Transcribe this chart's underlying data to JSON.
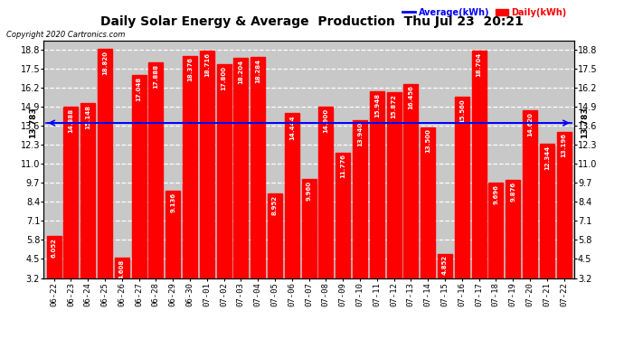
{
  "title": "Daily Solar Energy & Average  Production  Thu Jul 23  20:21",
  "copyright": "Copyright 2020 Cartronics.com",
  "avg_label": "Average(kWh)",
  "daily_label": "Daily(kWh)",
  "avg_value": 13.783,
  "avg_value_label": "13.783",
  "categories": [
    "06-22",
    "06-23",
    "06-24",
    "06-25",
    "06-26",
    "06-27",
    "06-28",
    "06-29",
    "06-30",
    "07-01",
    "07-02",
    "07-03",
    "07-04",
    "07-05",
    "07-06",
    "07-07",
    "07-08",
    "07-09",
    "07-10",
    "07-11",
    "07-12",
    "07-13",
    "07-14",
    "07-15",
    "07-16",
    "07-17",
    "07-18",
    "07-19",
    "07-20",
    "07-21",
    "07-22"
  ],
  "values": [
    6.052,
    14.888,
    15.148,
    18.82,
    4.608,
    17.048,
    17.888,
    9.136,
    18.376,
    18.716,
    17.8,
    18.204,
    18.284,
    8.952,
    14.444,
    9.96,
    14.9,
    11.776,
    13.94,
    15.948,
    15.872,
    16.456,
    13.5,
    4.852,
    15.56,
    18.704,
    9.696,
    9.876,
    14.62,
    12.344,
    13.196
  ],
  "bar_color": "#ff0000",
  "avg_line_color": "#0000ff",
  "bg_color": "#ffffff",
  "plot_bg_color": "#c8c8c8",
  "grid_color": "#ffffff",
  "yticks": [
    3.2,
    4.5,
    5.8,
    7.1,
    8.4,
    9.7,
    11.0,
    12.3,
    13.6,
    14.9,
    16.2,
    17.5,
    18.8
  ],
  "ylim": [
    3.2,
    19.4
  ],
  "title_color": "#000000",
  "avg_text_color": "#0000ff",
  "daily_text_color": "#ff0000",
  "label_color": "#000000"
}
